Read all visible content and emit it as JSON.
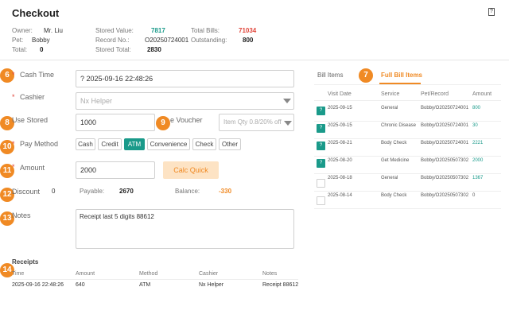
{
  "header": {
    "title": "Checkout",
    "help_icon": "?",
    "owner_label": "Owner:",
    "owner": "Mr. Liu",
    "pet_label": "Pet:",
    "pet": "Bobby",
    "total_label": "Total:",
    "total": "0",
    "stored_value_label": "Stored Value:",
    "stored_value": "7817",
    "record_no_label": "Record No.:",
    "record_no": "O20250724001",
    "stored_total_label": "Stored Total:",
    "stored_total": "2830",
    "total_bills_label": "Total Bills:",
    "total_bills": "71034",
    "outstanding_label": "Outstanding:",
    "outstanding": "800"
  },
  "badges": [
    "6",
    "7",
    "8",
    "9",
    "10",
    "11",
    "12",
    "13",
    "14"
  ],
  "form": {
    "cash_time_label": "Cash Time",
    "cash_time_value": "2025-09-16 22:48:26",
    "calendar_icon": "?",
    "cashier_label": "Cashier",
    "cashier_placeholder": "Nx Helper",
    "use_stored_label": "Use Stored",
    "use_stored_value": "1000",
    "voucher_label": "e Voucher",
    "voucher_placeholder": "Item Qty 0.8/20% off",
    "pay_method_label": "Pay Method",
    "pay_methods": [
      "Cash",
      "Credit",
      "ATM",
      "Convenience",
      "Check",
      "Other"
    ],
    "pay_method_selected": "ATM",
    "amount_label": "Amount",
    "amount_value": "2000",
    "calc_button": "Calc Quick",
    "discount_label": "Discount",
    "discount_value": "0",
    "payable_label": "Payable:",
    "payable_value": "2670",
    "balance_label": "Balance:",
    "balance_value": "-330",
    "notes_label": "Notes",
    "notes_value": "Receipt last 5 digits 88612"
  },
  "receipts": {
    "title": "Receipts",
    "headers": [
      "Time",
      "Amount",
      "Method",
      "Cashier",
      "Notes"
    ],
    "rows": [
      [
        "2025-09-16 22:48:26",
        "640",
        "ATM",
        "Nx Helper",
        "Receipt 88612"
      ]
    ]
  },
  "bills": {
    "tabs": [
      "Bill Items",
      "Full Bill Items"
    ],
    "active_tab": "Full Bill Items",
    "headers": [
      "Visit Date",
      "Service",
      "Pet/Record",
      "Amount"
    ],
    "rows": [
      {
        "checked": true,
        "date": "2025-09-15",
        "service": "General",
        "record": "Bobby/O20250724001",
        "amount": "800"
      },
      {
        "checked": true,
        "date": "2025-09-15",
        "service": "Chronic Disease",
        "record": "Bobby/O20250724001",
        "amount": "30"
      },
      {
        "checked": true,
        "date": "2025-08-21",
        "service": "Body Check",
        "record": "Bobby/O20250724001",
        "amount": "2221"
      },
      {
        "checked": true,
        "date": "2025-08-20",
        "service": "Get Medicine",
        "record": "Bobby/O20250507302",
        "amount": "2000"
      },
      {
        "checked": false,
        "date": "2025-08-18",
        "service": "General",
        "record": "Bobby/O20250507302",
        "amount": "1367"
      },
      {
        "checked": false,
        "date": "2025-08-14",
        "service": "Body Check",
        "record": "Bobby/O20250507302",
        "amount": "0"
      }
    ],
    "check_icon": "?"
  },
  "colors": {
    "accent": "#f08a24",
    "teal": "#1a9a8a",
    "danger": "#e0453a"
  }
}
